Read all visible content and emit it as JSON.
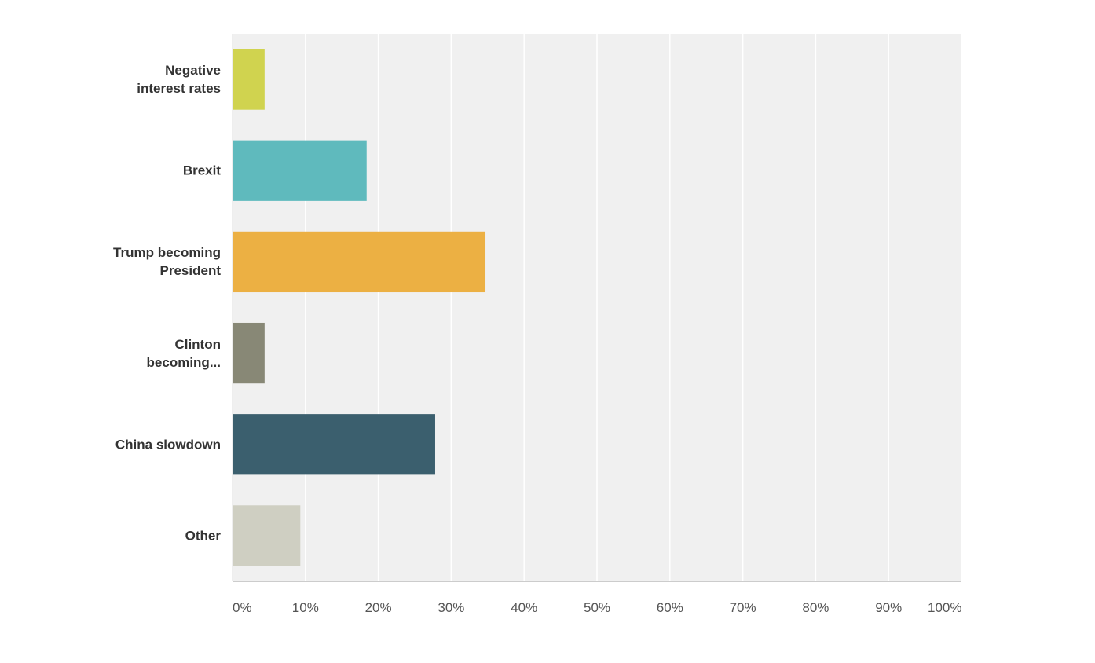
{
  "chart_data": {
    "type": "bar",
    "orientation": "horizontal",
    "categories": [
      "Negative\ninterest rates",
      "Brexit",
      "Trump becoming\nPresident",
      "Clinton\nbecoming...",
      "China slowdown",
      "Other"
    ],
    "values": [
      4.4,
      18.4,
      34.7,
      4.4,
      27.8,
      9.3
    ],
    "colors": [
      "#d0d34f",
      "#5fbabd",
      "#ecb043",
      "#888876",
      "#3b5f6e",
      "#cfcfc2"
    ],
    "xlim": [
      0,
      100
    ],
    "xticks": [
      {
        "value": 0,
        "label": "0%"
      },
      {
        "value": 10,
        "label": "10%"
      },
      {
        "value": 20,
        "label": "20%"
      },
      {
        "value": 30,
        "label": "30%"
      },
      {
        "value": 40,
        "label": "40%"
      },
      {
        "value": 50,
        "label": "50%"
      },
      {
        "value": 60,
        "label": "60%"
      },
      {
        "value": 70,
        "label": "70%"
      },
      {
        "value": 80,
        "label": "80%"
      },
      {
        "value": 90,
        "label": "90%"
      },
      {
        "value": 100,
        "label": "100%"
      }
    ],
    "grid": true
  }
}
